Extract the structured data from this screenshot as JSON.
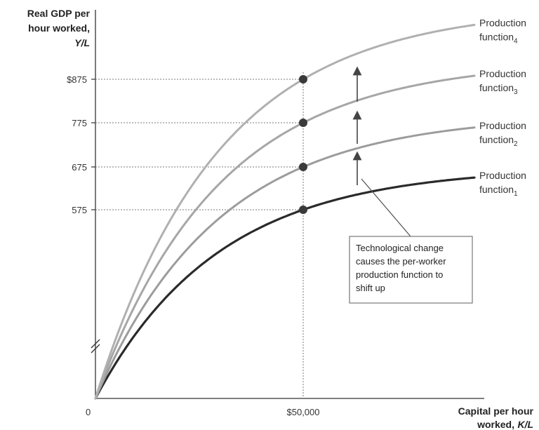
{
  "chart_data": {
    "type": "line",
    "ylabel_lines": [
      "Real GDP per",
      "hour worked,"
    ],
    "ylabel_symbol": "Y/L",
    "xlabel_lines": [
      "Capital per hour",
      "worked,"
    ],
    "xlabel_symbol": "K/L",
    "origin_label": "0",
    "x_tick": {
      "value": 50000,
      "label": "$50,000"
    },
    "y_ticks": [
      {
        "value": 575,
        "label": "575"
      },
      {
        "value": 675,
        "label": "675"
      },
      {
        "value": 775,
        "label": "775"
      },
      {
        "value": 875,
        "label": "$875"
      }
    ],
    "series": [
      {
        "label_main": "Production",
        "label_prefix": "function",
        "label_sub": "1",
        "value_at_tick": 575,
        "color": "#2a2a2a",
        "width": 3.2
      },
      {
        "label_main": "Production",
        "label_prefix": "function",
        "label_sub": "2",
        "value_at_tick": 675,
        "color": "#9c9c9c",
        "width": 3
      },
      {
        "label_main": "Production",
        "label_prefix": "function",
        "label_sub": "3",
        "value_at_tick": 775,
        "color": "#a6a6a6",
        "width": 3
      },
      {
        "label_main": "Production",
        "label_prefix": "function",
        "label_sub": "4",
        "value_at_tick": 875,
        "color": "#b0b0b0",
        "width": 3
      }
    ],
    "annotation": [
      "Technological change",
      "causes the per-worker",
      "production function to",
      "shift up"
    ],
    "axis_break": true,
    "grid": false,
    "legend": "inline-right"
  }
}
